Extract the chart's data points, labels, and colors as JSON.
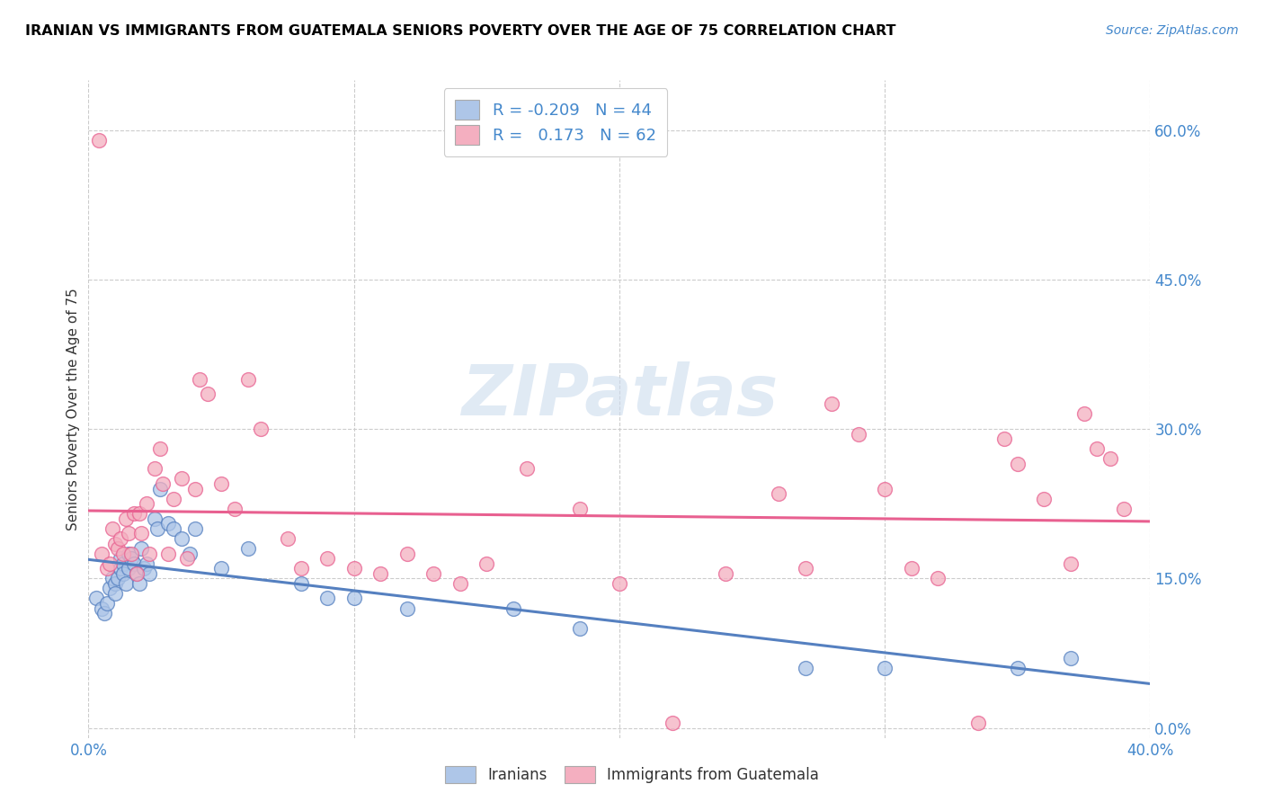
{
  "title": "IRANIAN VS IMMIGRANTS FROM GUATEMALA SENIORS POVERTY OVER THE AGE OF 75 CORRELATION CHART",
  "source": "Source: ZipAtlas.com",
  "ylabel": "Seniors Poverty Over the Age of 75",
  "xlim": [
    0.0,
    0.4
  ],
  "ylim": [
    -0.01,
    0.65
  ],
  "yticks": [
    0.0,
    0.15,
    0.3,
    0.45,
    0.6
  ],
  "ytick_labels": [
    "0.0%",
    "15.0%",
    "30.0%",
    "45.0%",
    "60.0%"
  ],
  "xticks": [
    0.0,
    0.4
  ],
  "xtick_labels": [
    "0.0%",
    "40.0%"
  ],
  "color_iranian": "#aec6e8",
  "color_guatemala": "#f4afc0",
  "line_color_iranian": "#5580c0",
  "line_color_guatemala": "#e86090",
  "watermark": "ZIPatlas",
  "iranian_x": [
    0.003,
    0.005,
    0.006,
    0.007,
    0.008,
    0.009,
    0.01,
    0.01,
    0.011,
    0.012,
    0.012,
    0.013,
    0.013,
    0.014,
    0.015,
    0.015,
    0.016,
    0.017,
    0.018,
    0.019,
    0.02,
    0.021,
    0.022,
    0.023,
    0.025,
    0.026,
    0.027,
    0.03,
    0.032,
    0.035,
    0.038,
    0.04,
    0.05,
    0.06,
    0.08,
    0.09,
    0.1,
    0.12,
    0.16,
    0.185,
    0.27,
    0.3,
    0.35,
    0.37
  ],
  "iranian_y": [
    0.13,
    0.12,
    0.115,
    0.125,
    0.14,
    0.15,
    0.145,
    0.135,
    0.15,
    0.16,
    0.17,
    0.165,
    0.155,
    0.145,
    0.16,
    0.175,
    0.17,
    0.165,
    0.155,
    0.145,
    0.18,
    0.16,
    0.165,
    0.155,
    0.21,
    0.2,
    0.24,
    0.205,
    0.2,
    0.19,
    0.175,
    0.2,
    0.16,
    0.18,
    0.145,
    0.13,
    0.13,
    0.12,
    0.12,
    0.1,
    0.06,
    0.06,
    0.06,
    0.07
  ],
  "guatemala_x": [
    0.004,
    0.005,
    0.007,
    0.008,
    0.009,
    0.01,
    0.011,
    0.012,
    0.013,
    0.014,
    0.015,
    0.016,
    0.017,
    0.018,
    0.019,
    0.02,
    0.022,
    0.023,
    0.025,
    0.027,
    0.028,
    0.03,
    0.032,
    0.035,
    0.037,
    0.04,
    0.042,
    0.045,
    0.05,
    0.055,
    0.06,
    0.065,
    0.075,
    0.08,
    0.09,
    0.1,
    0.11,
    0.12,
    0.13,
    0.14,
    0.15,
    0.165,
    0.185,
    0.2,
    0.22,
    0.24,
    0.26,
    0.27,
    0.28,
    0.29,
    0.3,
    0.31,
    0.32,
    0.335,
    0.345,
    0.35,
    0.36,
    0.37,
    0.375,
    0.38,
    0.385,
    0.39
  ],
  "guatemala_y": [
    0.59,
    0.175,
    0.16,
    0.165,
    0.2,
    0.185,
    0.18,
    0.19,
    0.175,
    0.21,
    0.195,
    0.175,
    0.215,
    0.155,
    0.215,
    0.195,
    0.225,
    0.175,
    0.26,
    0.28,
    0.245,
    0.175,
    0.23,
    0.25,
    0.17,
    0.24,
    0.35,
    0.335,
    0.245,
    0.22,
    0.35,
    0.3,
    0.19,
    0.16,
    0.17,
    0.16,
    0.155,
    0.175,
    0.155,
    0.145,
    0.165,
    0.26,
    0.22,
    0.145,
    0.005,
    0.155,
    0.235,
    0.16,
    0.325,
    0.295,
    0.24,
    0.16,
    0.15,
    0.005,
    0.29,
    0.265,
    0.23,
    0.165,
    0.315,
    0.28,
    0.27,
    0.22
  ]
}
